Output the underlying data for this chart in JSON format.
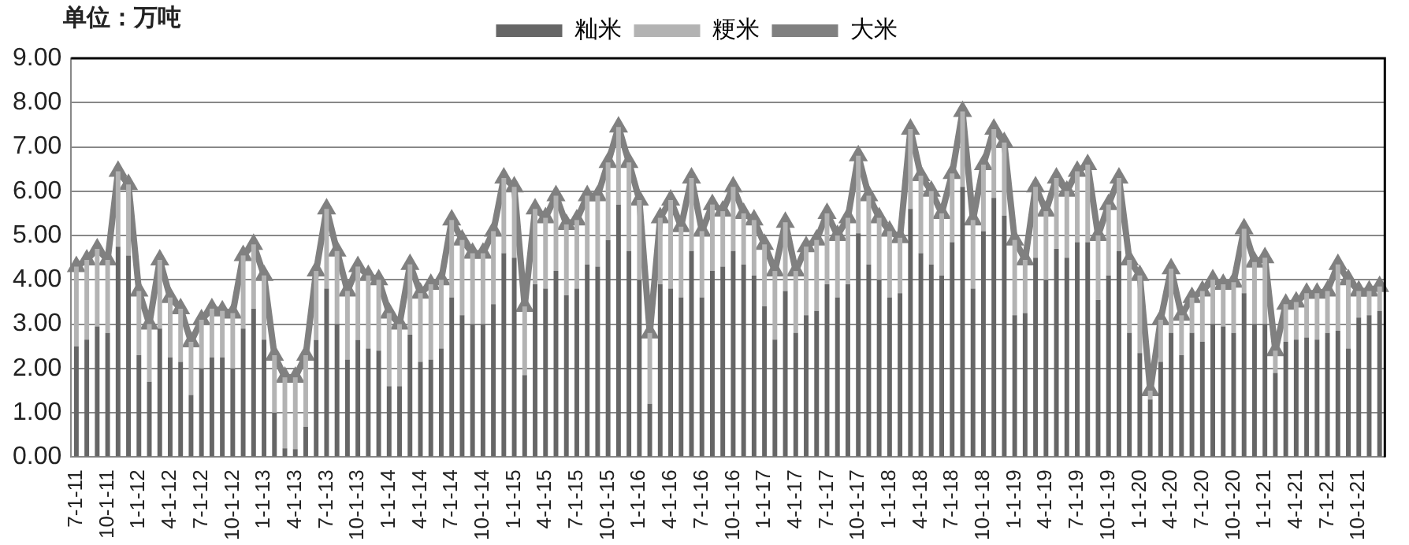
{
  "chart_data": {
    "type": "bar",
    "stacked": true,
    "ylabel": "单位：万吨",
    "categories": [
      "7-1-11",
      null,
      null,
      "10-1-11",
      null,
      null,
      "1-1-12",
      null,
      null,
      "4-1-12",
      null,
      null,
      "7-1-12",
      null,
      null,
      "10-1-12",
      null,
      null,
      "1-1-13",
      null,
      null,
      "4-1-13",
      null,
      null,
      "7-1-13",
      null,
      null,
      "10-1-13",
      null,
      null,
      "1-1-14",
      null,
      null,
      "4-1-14",
      null,
      null,
      "7-1-14",
      null,
      null,
      "10-1-14",
      null,
      null,
      "1-1-15",
      null,
      null,
      "4-1-15",
      null,
      null,
      "7-1-15",
      null,
      null,
      "10-1-15",
      null,
      null,
      "1-1-16",
      null,
      null,
      "4-1-16",
      null,
      null,
      "7-1-16",
      null,
      null,
      "10-1-16",
      null,
      null,
      "1-1-17",
      null,
      null,
      "4-1-17",
      null,
      null,
      "7-1-17",
      null,
      null,
      "10-1-17",
      null,
      null,
      "1-1-18",
      null,
      null,
      "4-1-18",
      null,
      null,
      "7-1-18",
      null,
      null,
      "10-1-18",
      null,
      null,
      "1-1-19",
      null,
      null,
      "4-1-19",
      null,
      null,
      "7-1-19",
      null,
      null,
      "10-1-19",
      null,
      null,
      "1-1-20",
      null,
      null,
      "4-1-20",
      null,
      null,
      "7-1-20",
      null,
      null,
      "10-1-20",
      null,
      null,
      "1-1-21",
      null,
      null,
      "4-1-21",
      null,
      null,
      "7-1-21",
      null,
      null,
      "10-1-21",
      null,
      null
    ],
    "series": [
      {
        "name": "籼米",
        "color": "#666666",
        "values": [
          2.5,
          2.65,
          2.95,
          2.8,
          4.75,
          4.55,
          2.3,
          1.7,
          2.9,
          2.25,
          2.15,
          1.4,
          2.0,
          2.25,
          2.25,
          2.0,
          2.9,
          3.35,
          2.65,
          1.0,
          0.2,
          0.18,
          0.68,
          2.64,
          3.8,
          3.0,
          2.2,
          2.64,
          2.45,
          2.4,
          1.6,
          1.6,
          2.76,
          2.15,
          2.2,
          2.45,
          3.6,
          3.2,
          3.0,
          3.0,
          3.45,
          4.6,
          4.5,
          1.85,
          3.9,
          3.8,
          4.2,
          3.65,
          3.8,
          4.35,
          4.3,
          4.9,
          5.7,
          4.65,
          4.0,
          1.2,
          3.9,
          3.8,
          3.6,
          4.65,
          3.6,
          4.2,
          4.3,
          4.65,
          4.35,
          4.1,
          3.4,
          2.65,
          3.75,
          2.8,
          3.2,
          3.3,
          3.9,
          3.6,
          3.9,
          5.05,
          4.35,
          4.0,
          3.6,
          3.7,
          5.6,
          4.6,
          4.35,
          4.1,
          4.85,
          6.1,
          3.8,
          5.1,
          5.85,
          5.45,
          3.2,
          3.25,
          4.5,
          4.0,
          4.7,
          4.5,
          4.85,
          4.85,
          3.55,
          4.1,
          4.65,
          2.8,
          2.35,
          1.3,
          2.15,
          2.8,
          2.3,
          2.8,
          2.6,
          3.0,
          2.95,
          2.8,
          3.7,
          3.0,
          3.0,
          1.9,
          2.6,
          2.65,
          2.7,
          2.65,
          2.8,
          2.85,
          2.45,
          3.15,
          3.2,
          3.3
        ]
      },
      {
        "name": "粳米",
        "color": "#b3b3b3",
        "values": [
          1.8,
          1.8,
          1.75,
          1.65,
          1.7,
          1.6,
          1.45,
          1.3,
          1.55,
          1.35,
          1.2,
          1.2,
          1.1,
          1.1,
          1.05,
          1.25,
          1.65,
          1.45,
          1.45,
          1.3,
          1.6,
          1.62,
          1.62,
          1.56,
          1.8,
          1.65,
          1.55,
          1.66,
          1.65,
          1.6,
          1.65,
          1.4,
          1.59,
          1.55,
          1.7,
          1.55,
          1.75,
          1.7,
          1.6,
          1.6,
          1.65,
          1.7,
          1.6,
          1.55,
          1.7,
          1.6,
          1.7,
          1.6,
          1.55,
          1.55,
          1.6,
          1.75,
          1.75,
          2.0,
          1.8,
          1.6,
          1.5,
          2.0,
          1.6,
          1.65,
          1.5,
          1.5,
          1.25,
          1.45,
          1.15,
          1.25,
          1.4,
          1.55,
          1.55,
          1.4,
          1.55,
          1.6,
          1.6,
          1.4,
          1.5,
          1.75,
          1.55,
          1.4,
          1.5,
          1.25,
          1.8,
          1.75,
          1.65,
          1.4,
          1.55,
          1.7,
          1.55,
          1.5,
          1.55,
          1.65,
          1.7,
          1.2,
          1.6,
          1.55,
          1.6,
          1.5,
          1.6,
          1.75,
          1.45,
          1.6,
          1.65,
          1.65,
          1.75,
          0.2,
          0.95,
          1.45,
          0.9,
          0.8,
          1.15,
          1.0,
          0.95,
          1.15,
          1.45,
          1.4,
          1.5,
          0.5,
          0.85,
          0.85,
          1.0,
          1.05,
          0.95,
          1.5,
          1.55,
          0.6,
          0.55,
          0.55
        ]
      },
      {
        "name": "大米",
        "type": "line",
        "color": "#808080",
        "values": [
          4.3,
          4.45,
          4.7,
          4.45,
          6.45,
          6.15,
          3.75,
          3.0,
          4.45,
          3.6,
          3.35,
          2.6,
          3.1,
          3.35,
          3.3,
          3.25,
          4.55,
          4.8,
          4.1,
          2.3,
          1.8,
          1.8,
          2.3,
          4.2,
          5.6,
          4.65,
          3.75,
          4.3,
          4.1,
          4.0,
          3.25,
          3.0,
          4.35,
          3.7,
          3.9,
          4.0,
          5.35,
          4.9,
          4.6,
          4.6,
          5.1,
          6.3,
          6.1,
          3.4,
          5.6,
          5.4,
          5.9,
          5.25,
          5.35,
          5.9,
          5.9,
          6.65,
          7.45,
          6.65,
          5.8,
          2.8,
          5.4,
          5.8,
          5.2,
          6.3,
          5.1,
          5.7,
          5.55,
          6.1,
          5.5,
          5.35,
          4.8,
          4.2,
          5.3,
          4.2,
          4.75,
          4.9,
          5.5,
          5.0,
          5.4,
          6.8,
          5.9,
          5.4,
          5.1,
          4.95,
          7.4,
          6.35,
          6.0,
          5.5,
          6.4,
          7.8,
          5.35,
          6.6,
          7.4,
          7.1,
          4.9,
          4.45,
          6.1,
          5.55,
          6.3,
          6.0,
          6.45,
          6.6,
          5.0,
          5.7,
          6.3,
          4.45,
          4.1,
          1.5,
          3.1,
          4.25,
          3.2,
          3.6,
          3.75,
          4.0,
          3.9,
          3.95,
          5.15,
          4.4,
          4.5,
          2.4,
          3.45,
          3.5,
          3.7,
          3.7,
          3.75,
          4.35,
          4.0,
          3.75,
          3.75,
          3.85
        ]
      }
    ],
    "ylim": [
      0,
      9
    ],
    "yticks": [
      {
        "value": 0,
        "label": "0.00"
      },
      {
        "value": 1,
        "label": "1.00"
      },
      {
        "value": 2,
        "label": "2.00"
      },
      {
        "value": 3,
        "label": "3.00"
      },
      {
        "value": 4,
        "label": "4.00"
      },
      {
        "value": 5,
        "label": "5.00"
      },
      {
        "value": 6,
        "label": "6.00"
      },
      {
        "value": 7,
        "label": "7.00"
      },
      {
        "value": 8,
        "label": "8.00"
      },
      {
        "value": 9,
        "label": "9.00"
      }
    ],
    "grid": "y",
    "legend": "top",
    "marker": "triangle",
    "line_style": "solid"
  }
}
